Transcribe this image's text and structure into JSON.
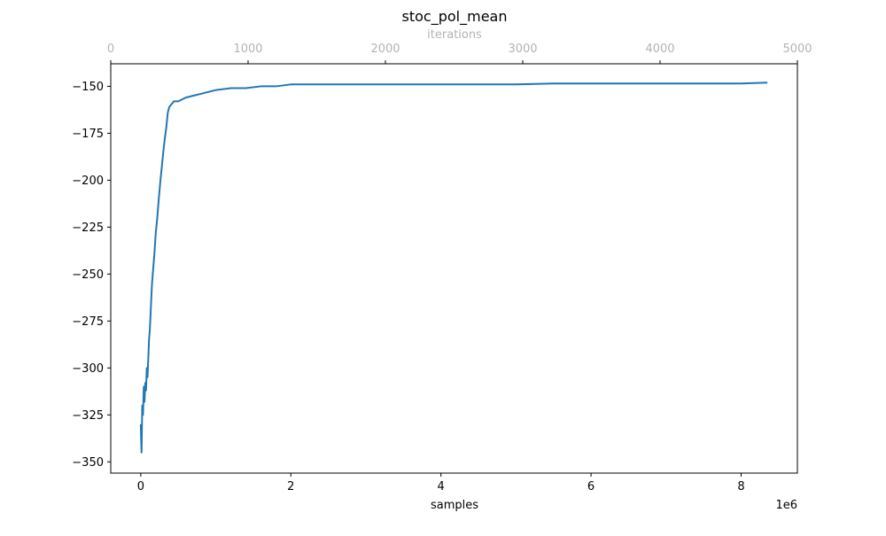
{
  "chart_data": {
    "type": "line",
    "title": "stoc_pol_mean",
    "xlabel": "samples",
    "x_offset_text": "1e6",
    "x_top_label": "iterations",
    "ylabel": "",
    "xlim": [
      -0.4,
      8.75
    ],
    "ylim": [
      -356,
      -138
    ],
    "x_top_lim": [
      0,
      5000
    ],
    "x_ticks": [
      0,
      2,
      4,
      6,
      8
    ],
    "x_tick_labels": [
      "0",
      "2",
      "4",
      "6",
      "8"
    ],
    "x_top_ticks": [
      0,
      1000,
      2000,
      3000,
      4000,
      5000
    ],
    "x_top_tick_labels": [
      "0",
      "1000",
      "2000",
      "3000",
      "4000",
      "5000"
    ],
    "y_ticks": [
      -150,
      -175,
      -200,
      -225,
      -250,
      -275,
      -300,
      -325,
      -350
    ],
    "y_tick_labels": [
      "−150",
      "−175",
      "−200",
      "−225",
      "−250",
      "−275",
      "−300",
      "−325",
      "−350"
    ],
    "grid": false,
    "series": [
      {
        "color": "#1f77b4",
        "x": [
          0.0,
          0.01,
          0.02,
          0.03,
          0.04,
          0.05,
          0.06,
          0.07,
          0.08,
          0.09,
          0.1,
          0.11,
          0.12,
          0.13,
          0.14,
          0.15,
          0.16,
          0.18,
          0.2,
          0.22,
          0.24,
          0.26,
          0.28,
          0.3,
          0.32,
          0.34,
          0.36,
          0.38,
          0.4,
          0.42,
          0.44,
          0.46,
          0.5,
          0.55,
          0.6,
          0.7,
          0.8,
          0.9,
          1.0,
          1.2,
          1.4,
          1.6,
          1.8,
          2.0,
          2.5,
          3.0,
          3.5,
          4.0,
          4.5,
          5.0,
          5.5,
          6.0,
          6.5,
          7.0,
          7.5,
          8.0,
          8.35
        ],
        "y": [
          -330,
          -345,
          -320,
          -325,
          -310,
          -318,
          -308,
          -312,
          -300,
          -305,
          -295,
          -285,
          -280,
          -272,
          -263,
          -255,
          -250,
          -240,
          -228,
          -220,
          -210,
          -201,
          -193,
          -185,
          -178,
          -172,
          -164,
          -161,
          -160,
          -159,
          -158,
          -158,
          -158,
          -157,
          -156,
          -155,
          -154,
          -153,
          -152,
          -151,
          -151,
          -150,
          -150,
          -149,
          -149,
          -149,
          -149,
          -149,
          -149,
          -149,
          -148.5,
          -148.5,
          -148.5,
          -148.5,
          -148.5,
          -148.5,
          -148
        ]
      }
    ]
  }
}
